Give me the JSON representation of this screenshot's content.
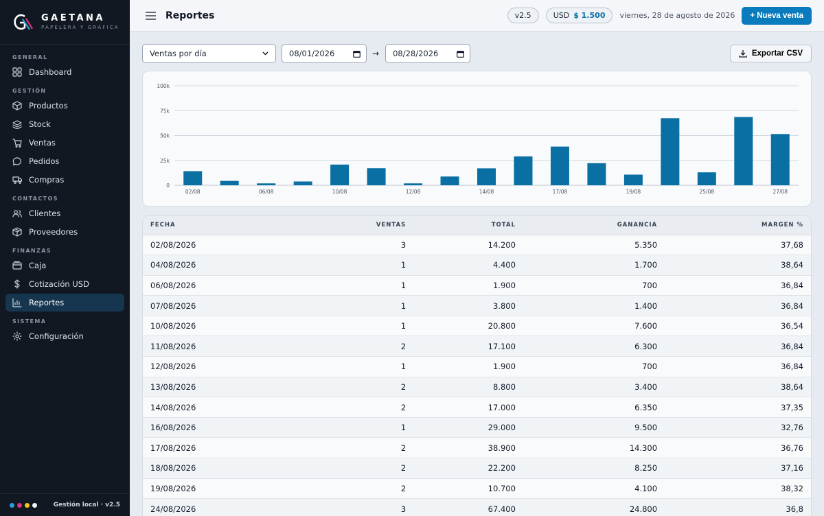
{
  "app": {
    "brand_name": "GAETANA",
    "brand_sub": "PAPELERA Y GRÁFICA",
    "footer_text": "Gestión local · v2.5",
    "footer_dots": [
      "#2a9fd6",
      "#e0327a",
      "#f5c518",
      "#f3f4f6"
    ]
  },
  "sidebar": {
    "sections": [
      {
        "title": "GENERAL",
        "items": [
          {
            "label": "Dashboard",
            "icon": "dashboard-icon"
          }
        ]
      },
      {
        "title": "GESTIÓN",
        "items": [
          {
            "label": "Productos",
            "icon": "box-icon"
          },
          {
            "label": "Stock",
            "icon": "layers-icon"
          },
          {
            "label": "Ventas",
            "icon": "cart-icon"
          },
          {
            "label": "Pedidos",
            "icon": "message-icon"
          },
          {
            "label": "Compras",
            "icon": "truck-icon"
          }
        ]
      },
      {
        "title": "CONTACTOS",
        "items": [
          {
            "label": "Clientes",
            "icon": "users-icon"
          },
          {
            "label": "Proveedores",
            "icon": "package-icon"
          }
        ]
      },
      {
        "title": "FINANZAS",
        "items": [
          {
            "label": "Caja",
            "icon": "wallet-icon"
          },
          {
            "label": "Cotización USD",
            "icon": "dollar-icon"
          },
          {
            "label": "Reportes",
            "icon": "chart-icon",
            "active": true
          }
        ]
      },
      {
        "title": "SISTEMA",
        "items": [
          {
            "label": "Configuración",
            "icon": "gear-icon"
          }
        ]
      }
    ]
  },
  "topbar": {
    "title": "Reportes",
    "version": "v2.5",
    "usd_label": "USD",
    "usd_value": "$ 1.500",
    "date": "viernes, 28 de agosto de 2026",
    "new_sale": "+ Nueva venta"
  },
  "filters": {
    "report_type": "Ventas por día",
    "date_from": "08/01/2026",
    "arrow": "→",
    "date_to": "08/28/2026",
    "export": "Exportar CSV"
  },
  "chart_data": {
    "type": "bar",
    "categories": [
      "02/08",
      "04/08",
      "06/08",
      "07/08",
      "10/08",
      "11/08",
      "12/08",
      "13/08",
      "14/08",
      "16/08",
      "17/08",
      "18/08",
      "19/08",
      "24/08",
      "25/08",
      "26/08",
      "27/08"
    ],
    "values": [
      14200,
      4400,
      1900,
      3800,
      20800,
      17100,
      1900,
      8800,
      17000,
      29000,
      38900,
      22200,
      10700,
      67400,
      13000,
      68600,
      51500
    ],
    "tick_labels_shown": [
      "02/08",
      "06/08",
      "10/08",
      "12/08",
      "14/08",
      "17/08",
      "19/08",
      "25/08",
      "27/08"
    ],
    "y_ticks": [
      {
        "value": 0,
        "label": "0"
      },
      {
        "value": 25000,
        "label": "25k"
      },
      {
        "value": 50000,
        "label": "50k"
      },
      {
        "value": 75000,
        "label": "75k"
      },
      {
        "value": 100000,
        "label": "100k"
      }
    ],
    "ylim": [
      0,
      100000
    ],
    "grid": true,
    "color": "#0a6fa3"
  },
  "table": {
    "headers": [
      "FECHA",
      "VENTAS",
      "TOTAL",
      "GANANCIA",
      "MARGEN %"
    ],
    "rows": [
      [
        "02/08/2026",
        "3",
        "14.200",
        "5.350",
        "37,68"
      ],
      [
        "04/08/2026",
        "1",
        "4.400",
        "1.700",
        "38,64"
      ],
      [
        "06/08/2026",
        "1",
        "1.900",
        "700",
        "36,84"
      ],
      [
        "07/08/2026",
        "1",
        "3.800",
        "1.400",
        "36,84"
      ],
      [
        "10/08/2026",
        "1",
        "20.800",
        "7.600",
        "36,54"
      ],
      [
        "11/08/2026",
        "2",
        "17.100",
        "6.300",
        "36,84"
      ],
      [
        "12/08/2026",
        "1",
        "1.900",
        "700",
        "36,84"
      ],
      [
        "13/08/2026",
        "2",
        "8.800",
        "3.400",
        "38,64"
      ],
      [
        "14/08/2026",
        "2",
        "17.000",
        "6.350",
        "37,35"
      ],
      [
        "16/08/2026",
        "1",
        "29.000",
        "9.500",
        "32,76"
      ],
      [
        "17/08/2026",
        "2",
        "38.900",
        "14.300",
        "36,76"
      ],
      [
        "18/08/2026",
        "2",
        "22.200",
        "8.250",
        "37,16"
      ],
      [
        "19/08/2026",
        "2",
        "10.700",
        "4.100",
        "38,32"
      ],
      [
        "24/08/2026",
        "3",
        "67.400",
        "24.800",
        "36,8"
      ]
    ]
  }
}
